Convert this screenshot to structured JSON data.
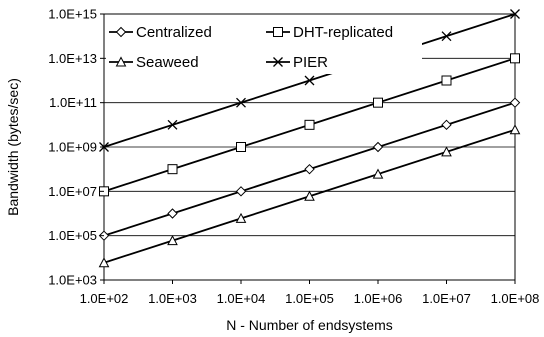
{
  "chart_data": {
    "type": "line",
    "x_scale": "log",
    "y_scale": "log",
    "x": [
      100,
      1000,
      10000,
      100000,
      1000000,
      10000000,
      100000000
    ],
    "x_tick_values": [
      100,
      1000,
      10000,
      100000,
      1000000,
      10000000,
      100000000
    ],
    "x_tick_labels": [
      "1.0E+02",
      "1.0E+03",
      "1.0E+04",
      "1.0E+05",
      "1.0E+06",
      "1.0E+07",
      "1.0E+08"
    ],
    "y_tick_values": [
      1000,
      100000,
      10000000,
      1000000000,
      100000000000,
      10000000000000,
      1000000000000000
    ],
    "y_tick_labels": [
      "1.0E+03",
      "1.0E+05",
      "1.0E+07",
      "1.0E+09",
      "1.0E+11",
      "1.0E+13",
      "1.0E+15"
    ],
    "xlim": [
      100,
      100000000
    ],
    "ylim": [
      1000,
      1000000000000000
    ],
    "xlabel": "N - Number of endsystems",
    "ylabel": "Bandwidth (bytes/sec)",
    "grid": "horizontal",
    "legend_position": "top-left",
    "series": [
      {
        "name": "Centralized",
        "marker": "diamond",
        "values": [
          100000,
          1000000,
          10000000,
          100000000,
          1000000000,
          10000000000,
          100000000000
        ]
      },
      {
        "name": "DHT-replicated",
        "marker": "square",
        "values": [
          10000000,
          100000000,
          1000000000,
          10000000000,
          100000000000,
          1000000000000,
          10000000000000
        ]
      },
      {
        "name": "Seaweed",
        "marker": "triangle",
        "values": [
          6000,
          60000,
          600000,
          6000000,
          60000000,
          600000000,
          6000000000
        ]
      },
      {
        "name": "PIER",
        "marker": "x",
        "values": [
          1000000000,
          10000000000,
          100000000000,
          1000000000000,
          10000000000000,
          100000000000000,
          1000000000000000
        ]
      }
    ]
  }
}
